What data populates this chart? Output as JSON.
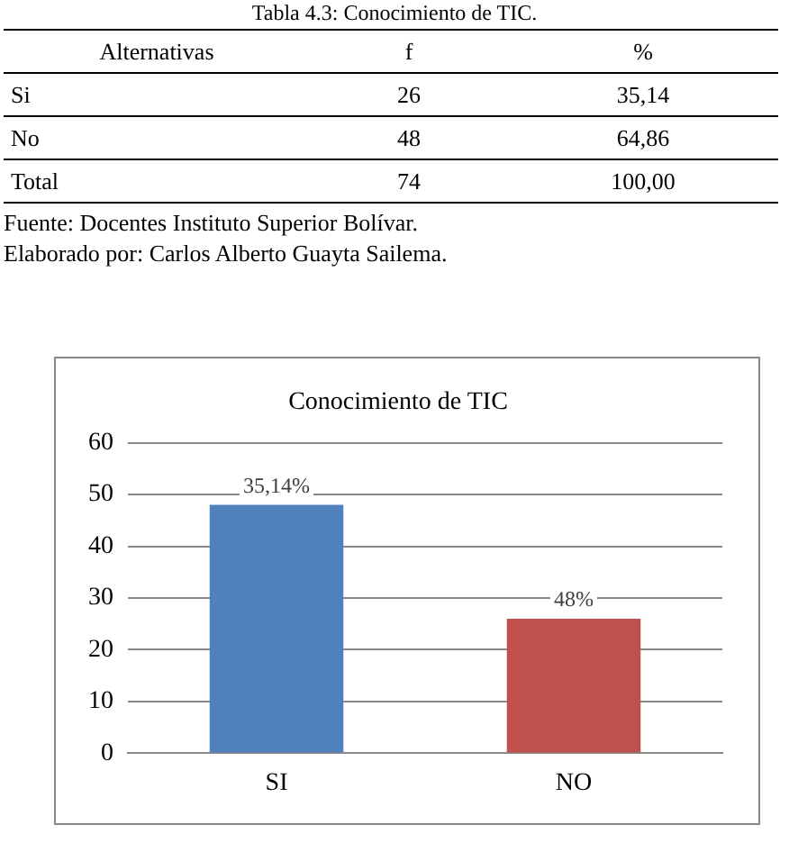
{
  "chart_data": [
    {
      "type": "other",
      "annotations": [
        "Tabla 4.3: Conocimiento de TIC.",
        "Alternativas",
        "f",
        "%",
        "Si",
        "26",
        "35,14",
        "No",
        "48",
        "64,86",
        "Total",
        "74",
        "100,00",
        "Fuente: Docentes Instituto Superior Bolívar.",
        "Elaborado por: Carlos Alberto Guayta Sailema."
      ]
    },
    {
      "type": "bar",
      "title": "Conocimiento de TIC",
      "categories": [
        "SI",
        "NO"
      ],
      "series": [
        {
          "values": [
            48,
            26
          ],
          "colors": [
            "#4f81bd",
            "#c0504d"
          ]
        }
      ],
      "value_labels": [
        "35,14%",
        "48%"
      ],
      "ylim": [
        0,
        60
      ],
      "yticks": [
        0,
        10,
        20,
        30,
        40,
        50,
        60
      ],
      "grid": "y",
      "legend": false
    }
  ]
}
